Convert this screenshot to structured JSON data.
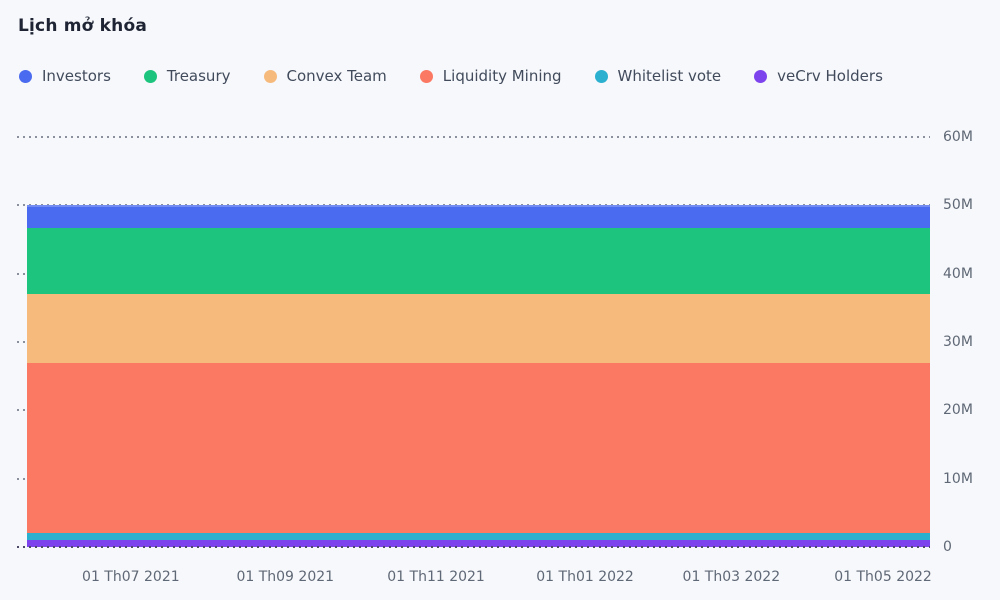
{
  "title": "Lịch mở khóa",
  "background_color": "#f7f8fb",
  "grid_color": "#8a909c",
  "axis_label_color": "#5f6876",
  "chart_data": {
    "type": "area",
    "stacked": true,
    "shape": "each series is constant (flat) across the entire visible date range",
    "title": "Lịch mở khóa",
    "xlabel": "",
    "ylabel": "",
    "ylim": [
      0,
      60000000
    ],
    "grid": "dotted horizontal lines",
    "legend_position": "top",
    "y_ticks": [
      "0",
      "10M",
      "20M",
      "30M",
      "40M",
      "50M",
      "60M"
    ],
    "x_ticks": [
      "01 Th07 2021",
      "01 Th09 2021",
      "01 Th11 2021",
      "01 Th01 2022",
      "01 Th03 2022",
      "01 Th05 2022"
    ],
    "total_stack_value": 50000000,
    "series_order": "top to bottom in stack, matching legend left to right",
    "series": [
      {
        "name": "Investors",
        "color": "#4a6bef",
        "value": 3300000
      },
      {
        "name": "Treasury",
        "color": "#1cc47e",
        "value": 9700000
      },
      {
        "name": "Convex Team",
        "color": "#f6ba7d",
        "value": 10000000
      },
      {
        "name": "Liquidity Mining",
        "color": "#fb7862",
        "value": 25000000
      },
      {
        "name": "Whitelist vote",
        "color": "#2bb0cf",
        "value": 1000000
      },
      {
        "name": "veCrv Holders",
        "color": "#7d44ee",
        "value": 1000000
      }
    ]
  }
}
